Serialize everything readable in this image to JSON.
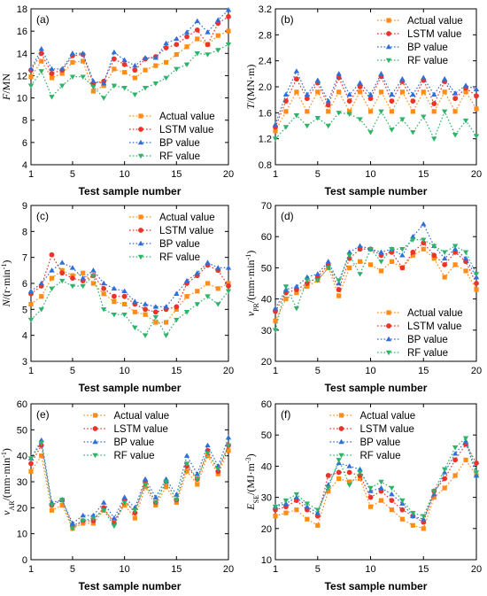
{
  "colors": {
    "actual": "#ff8c1a",
    "lstm": "#e8352b",
    "bp": "#2f6fd8",
    "rf": "#2fb36a"
  },
  "chart_data": [
    {
      "type": "line",
      "panel": "(a)",
      "ylabel": [
        {
          "t": "F",
          "i": true
        },
        {
          "t": "/MN"
        }
      ],
      "xlabel": "Test sample number",
      "xlim": [
        1,
        20
      ],
      "ylim": [
        4,
        18
      ],
      "xticks": [
        1,
        5,
        10,
        15,
        20
      ],
      "yticks": [
        4,
        6,
        8,
        10,
        12,
        14,
        16,
        18
      ],
      "legend_pos": "bottom-right",
      "x": [
        1,
        2,
        3,
        4,
        5,
        6,
        7,
        8,
        9,
        10,
        11,
        12,
        13,
        14,
        15,
        16,
        17,
        18,
        19,
        20
      ],
      "series": [
        {
          "name": "Actual value",
          "key": "actual",
          "marker": "square",
          "values": [
            11.9,
            13.3,
            11.8,
            12.2,
            13.2,
            13.3,
            10.6,
            11.1,
            12.6,
            12.3,
            11.8,
            12.5,
            12.9,
            13.2,
            13.9,
            14.6,
            15.3,
            14.8,
            15.6,
            16.0
          ]
        },
        {
          "name": "LSTM value",
          "key": "lstm",
          "marker": "circle",
          "values": [
            12.5,
            14.0,
            12.2,
            12.5,
            13.8,
            13.9,
            11.3,
            11.5,
            13.5,
            13.0,
            12.5,
            13.5,
            13.7,
            14.5,
            14.8,
            15.5,
            16.1,
            14.8,
            16.7,
            17.3
          ]
        },
        {
          "name": "BP value",
          "key": "bp",
          "marker": "triangle",
          "values": [
            12.6,
            14.4,
            12.6,
            12.6,
            14.0,
            14.0,
            11.5,
            11.3,
            14.1,
            13.4,
            12.9,
            13.6,
            13.6,
            14.9,
            15.3,
            15.9,
            16.9,
            15.9,
            17.0,
            17.9
          ]
        },
        {
          "name": "RF value",
          "key": "rf",
          "marker": "tri-down",
          "values": [
            11.1,
            12.4,
            10.1,
            11.1,
            11.9,
            11.9,
            11.0,
            10.0,
            11.1,
            10.9,
            10.3,
            10.9,
            11.3,
            11.8,
            12.6,
            13.0,
            14.0,
            13.9,
            14.3,
            14.8
          ]
        }
      ]
    },
    {
      "type": "line",
      "panel": "(b)",
      "ylabel": [
        {
          "t": "T",
          "i": true
        },
        {
          "t": "/(MN·m)"
        }
      ],
      "xlabel": "Test sample number",
      "xlim": [
        1,
        20
      ],
      "ylim": [
        0.8,
        3.2
      ],
      "xticks": [
        1,
        5,
        10,
        15,
        20
      ],
      "yticks": [
        0.8,
        1.2,
        1.6,
        2.0,
        2.4,
        2.8,
        3.2
      ],
      "legend_pos": "top-right",
      "x": [
        1,
        2,
        3,
        4,
        5,
        6,
        7,
        8,
        9,
        10,
        11,
        12,
        13,
        14,
        15,
        16,
        17,
        18,
        19,
        20
      ],
      "series": [
        {
          "name": "Actual value",
          "key": "actual",
          "marker": "square",
          "values": [
            1.32,
            1.62,
            1.92,
            1.62,
            1.92,
            1.62,
            1.92,
            1.62,
            1.92,
            1.62,
            1.92,
            1.62,
            1.92,
            1.62,
            1.92,
            1.62,
            1.92,
            1.62,
            1.92,
            1.66
          ]
        },
        {
          "name": "LSTM value",
          "key": "lstm",
          "marker": "circle",
          "values": [
            1.38,
            1.78,
            2.12,
            1.82,
            2.06,
            1.72,
            2.14,
            1.78,
            2.0,
            1.82,
            2.16,
            1.78,
            2.08,
            1.78,
            2.1,
            1.74,
            2.08,
            1.82,
            1.98,
            1.86
          ]
        },
        {
          "name": "BP value",
          "key": "bp",
          "marker": "triangle",
          "values": [
            1.42,
            1.88,
            2.24,
            1.88,
            2.1,
            1.78,
            2.2,
            1.88,
            2.06,
            1.88,
            2.2,
            1.88,
            2.12,
            1.88,
            2.14,
            1.88,
            2.12,
            1.9,
            2.02,
            1.96
          ]
        },
        {
          "name": "RF value",
          "key": "rf",
          "marker": "tri-down",
          "values": [
            1.2,
            1.38,
            1.56,
            1.4,
            1.52,
            1.4,
            1.6,
            1.58,
            1.5,
            1.3,
            1.62,
            1.34,
            1.5,
            1.3,
            1.54,
            1.2,
            1.62,
            1.26,
            1.48,
            1.24
          ]
        }
      ]
    },
    {
      "type": "line",
      "panel": "(c)",
      "ylabel": [
        {
          "t": "N",
          "i": true
        },
        {
          "t": "/(r·min"
        },
        {
          "t": "-1",
          "sup": true
        },
        {
          "t": ")"
        }
      ],
      "xlabel": "Test sample number",
      "xlim": [
        1,
        20
      ],
      "ylim": [
        3,
        9
      ],
      "xticks": [
        1,
        5,
        10,
        15,
        20
      ],
      "yticks": [
        3,
        4,
        5,
        6,
        7,
        8,
        9
      ],
      "legend_pos": "top-right",
      "x": [
        1,
        2,
        3,
        4,
        5,
        6,
        7,
        8,
        9,
        10,
        11,
        12,
        13,
        14,
        15,
        16,
        17,
        18,
        19,
        20
      ],
      "series": [
        {
          "name": "Actual value",
          "key": "actual",
          "marker": "square",
          "values": [
            5.2,
            5.5,
            6.2,
            6.5,
            6.3,
            6.4,
            6.0,
            5.6,
            5.3,
            5.2,
            4.9,
            4.8,
            4.5,
            4.5,
            5.0,
            5.5,
            5.7,
            6.0,
            5.8,
            6.0
          ]
        },
        {
          "name": "LSTM value",
          "key": "lstm",
          "marker": "circle",
          "values": [
            5.6,
            5.9,
            7.1,
            6.4,
            6.2,
            6.1,
            6.3,
            5.8,
            5.5,
            5.5,
            5.2,
            5.0,
            4.9,
            5.0,
            5.1,
            6.0,
            6.3,
            6.7,
            6.5,
            5.9
          ]
        },
        {
          "name": "BP value",
          "key": "bp",
          "marker": "triangle",
          "values": [
            5.7,
            6.0,
            6.5,
            6.8,
            6.6,
            6.2,
            6.5,
            6.0,
            5.8,
            5.7,
            5.3,
            5.2,
            5.1,
            5.1,
            5.6,
            6.1,
            6.4,
            6.8,
            6.6,
            6.6
          ]
        },
        {
          "name": "RF value",
          "key": "rf",
          "marker": "tri-down",
          "values": [
            4.6,
            5.0,
            5.8,
            6.1,
            5.9,
            5.9,
            6.3,
            5.0,
            4.8,
            4.8,
            4.3,
            4.0,
            4.7,
            4.0,
            4.6,
            4.9,
            5.2,
            5.5,
            5.2,
            5.7
          ]
        }
      ]
    },
    {
      "type": "line",
      "panel": "(d)",
      "ylabel": [
        {
          "t": "v",
          "i": true
        },
        {
          "t": "PR",
          "sub": true
        },
        {
          "t": "/(mm·min"
        },
        {
          "t": "-1",
          "sup": true
        },
        {
          "t": ")"
        }
      ],
      "xlabel": "Test sample number",
      "xlim": [
        1,
        20
      ],
      "ylim": [
        20,
        70
      ],
      "xticks": [
        1,
        5,
        10,
        15,
        20
      ],
      "yticks": [
        20,
        30,
        40,
        50,
        60,
        70
      ],
      "legend_pos": "bottom-right",
      "x": [
        1,
        2,
        3,
        4,
        5,
        6,
        7,
        8,
        9,
        10,
        11,
        12,
        13,
        14,
        15,
        16,
        17,
        18,
        19,
        20
      ],
      "series": [
        {
          "name": "Actual value",
          "key": "actual",
          "marker": "square",
          "values": [
            33,
            40,
            42,
            44,
            46,
            50,
            41,
            50,
            52,
            51,
            49,
            52,
            50,
            54,
            56,
            53,
            47,
            51,
            49,
            43
          ]
        },
        {
          "name": "LSTM value",
          "key": "lstm",
          "marker": "circle",
          "values": [
            36,
            42,
            43,
            45,
            47,
            51,
            43,
            53,
            56,
            56,
            54,
            55,
            50,
            55,
            58,
            54,
            51,
            55,
            52,
            45
          ]
        },
        {
          "name": "BP value",
          "key": "bp",
          "marker": "triangle",
          "values": [
            37,
            43,
            44,
            47,
            48,
            52,
            45,
            55,
            57,
            56,
            55,
            56,
            54,
            60,
            64,
            57,
            53,
            56,
            53,
            47
          ]
        },
        {
          "name": "RF value",
          "key": "rf",
          "marker": "tri-down",
          "values": [
            30,
            44,
            37,
            46,
            46,
            50,
            46,
            54,
            48,
            56,
            52,
            56,
            56,
            59,
            59,
            57,
            55,
            57,
            55,
            48
          ]
        }
      ]
    },
    {
      "type": "line",
      "panel": "(e)",
      "ylabel": [
        {
          "t": "v",
          "i": true
        },
        {
          "t": "AR",
          "sub": true
        },
        {
          "t": "/(mm·min"
        },
        {
          "t": "-1",
          "sup": true
        },
        {
          "t": ")"
        }
      ],
      "xlabel": "Test sample number",
      "xlim": [
        1,
        20
      ],
      "ylim": [
        0,
        60
      ],
      "xticks": [
        1,
        5,
        10,
        15,
        20
      ],
      "yticks": [
        0,
        10,
        20,
        30,
        40,
        50,
        60
      ],
      "legend_pos": "top-center",
      "x": [
        1,
        2,
        3,
        4,
        5,
        6,
        7,
        8,
        9,
        10,
        11,
        12,
        13,
        14,
        15,
        16,
        17,
        18,
        19,
        20
      ],
      "series": [
        {
          "name": "Actual value",
          "key": "actual",
          "marker": "square",
          "values": [
            34,
            40,
            19,
            21,
            12,
            14,
            14,
            19,
            15,
            21,
            16,
            28,
            21,
            28,
            22,
            34,
            29,
            40,
            33,
            42
          ]
        },
        {
          "name": "LSTM value",
          "key": "lstm",
          "marker": "circle",
          "values": [
            37,
            44,
            21,
            23,
            13,
            15,
            15,
            20,
            14,
            23,
            18,
            30,
            22,
            30,
            23,
            36,
            31,
            42,
            34,
            44
          ]
        },
        {
          "name": "BP value",
          "key": "bp",
          "marker": "triangle",
          "values": [
            39,
            46,
            22,
            23,
            14,
            17,
            17,
            22,
            16,
            24,
            20,
            31,
            24,
            31,
            25,
            40,
            33,
            44,
            36,
            47
          ]
        },
        {
          "name": "RF value",
          "key": "rf",
          "marker": "tri-down",
          "values": [
            39,
            45,
            21,
            23,
            12,
            15,
            16,
            19,
            13,
            22,
            19,
            29,
            22,
            30,
            23,
            37,
            31,
            41,
            35,
            44
          ]
        }
      ]
    },
    {
      "type": "line",
      "panel": "(f)",
      "ylabel": [
        {
          "t": "E",
          "i": true
        },
        {
          "t": "SE",
          "sub": true
        },
        {
          "t": "/(MJ·m"
        },
        {
          "t": "-3",
          "sup": true
        },
        {
          "t": ")"
        }
      ],
      "xlabel": "Test sample number",
      "xlim": [
        1,
        20
      ],
      "ylim": [
        10,
        60
      ],
      "xticks": [
        1,
        5,
        10,
        15,
        20
      ],
      "yticks": [
        10,
        20,
        30,
        40,
        50,
        60
      ],
      "legend_pos": "top-center",
      "x": [
        1,
        2,
        3,
        4,
        5,
        6,
        7,
        8,
        9,
        10,
        11,
        12,
        13,
        14,
        15,
        16,
        17,
        18,
        19,
        20
      ],
      "series": [
        {
          "name": "Actual value",
          "key": "actual",
          "marker": "square",
          "values": [
            24,
            25,
            26,
            23,
            21,
            32,
            36,
            35,
            36,
            27,
            29,
            26,
            23,
            21,
            20,
            30,
            33,
            37,
            42,
            37
          ]
        },
        {
          "name": "LSTM value",
          "key": "lstm",
          "marker": "circle",
          "values": [
            26,
            27,
            29,
            26,
            24,
            37,
            38,
            38,
            37,
            30,
            32,
            29,
            26,
            24,
            22,
            32,
            36,
            42,
            47,
            41
          ]
        },
        {
          "name": "BP value",
          "key": "bp",
          "marker": "triangle",
          "values": [
            27,
            28,
            30,
            27,
            25,
            34,
            41,
            40,
            39,
            32,
            33,
            31,
            28,
            24,
            23,
            31,
            38,
            44,
            48,
            37
          ]
        },
        {
          "name": "RF value",
          "key": "rf",
          "marker": "tri-down",
          "values": [
            27,
            29,
            31,
            28,
            26,
            33,
            42,
            34,
            38,
            33,
            35,
            33,
            29,
            25,
            24,
            32,
            39,
            46,
            49,
            38
          ]
        }
      ]
    }
  ]
}
